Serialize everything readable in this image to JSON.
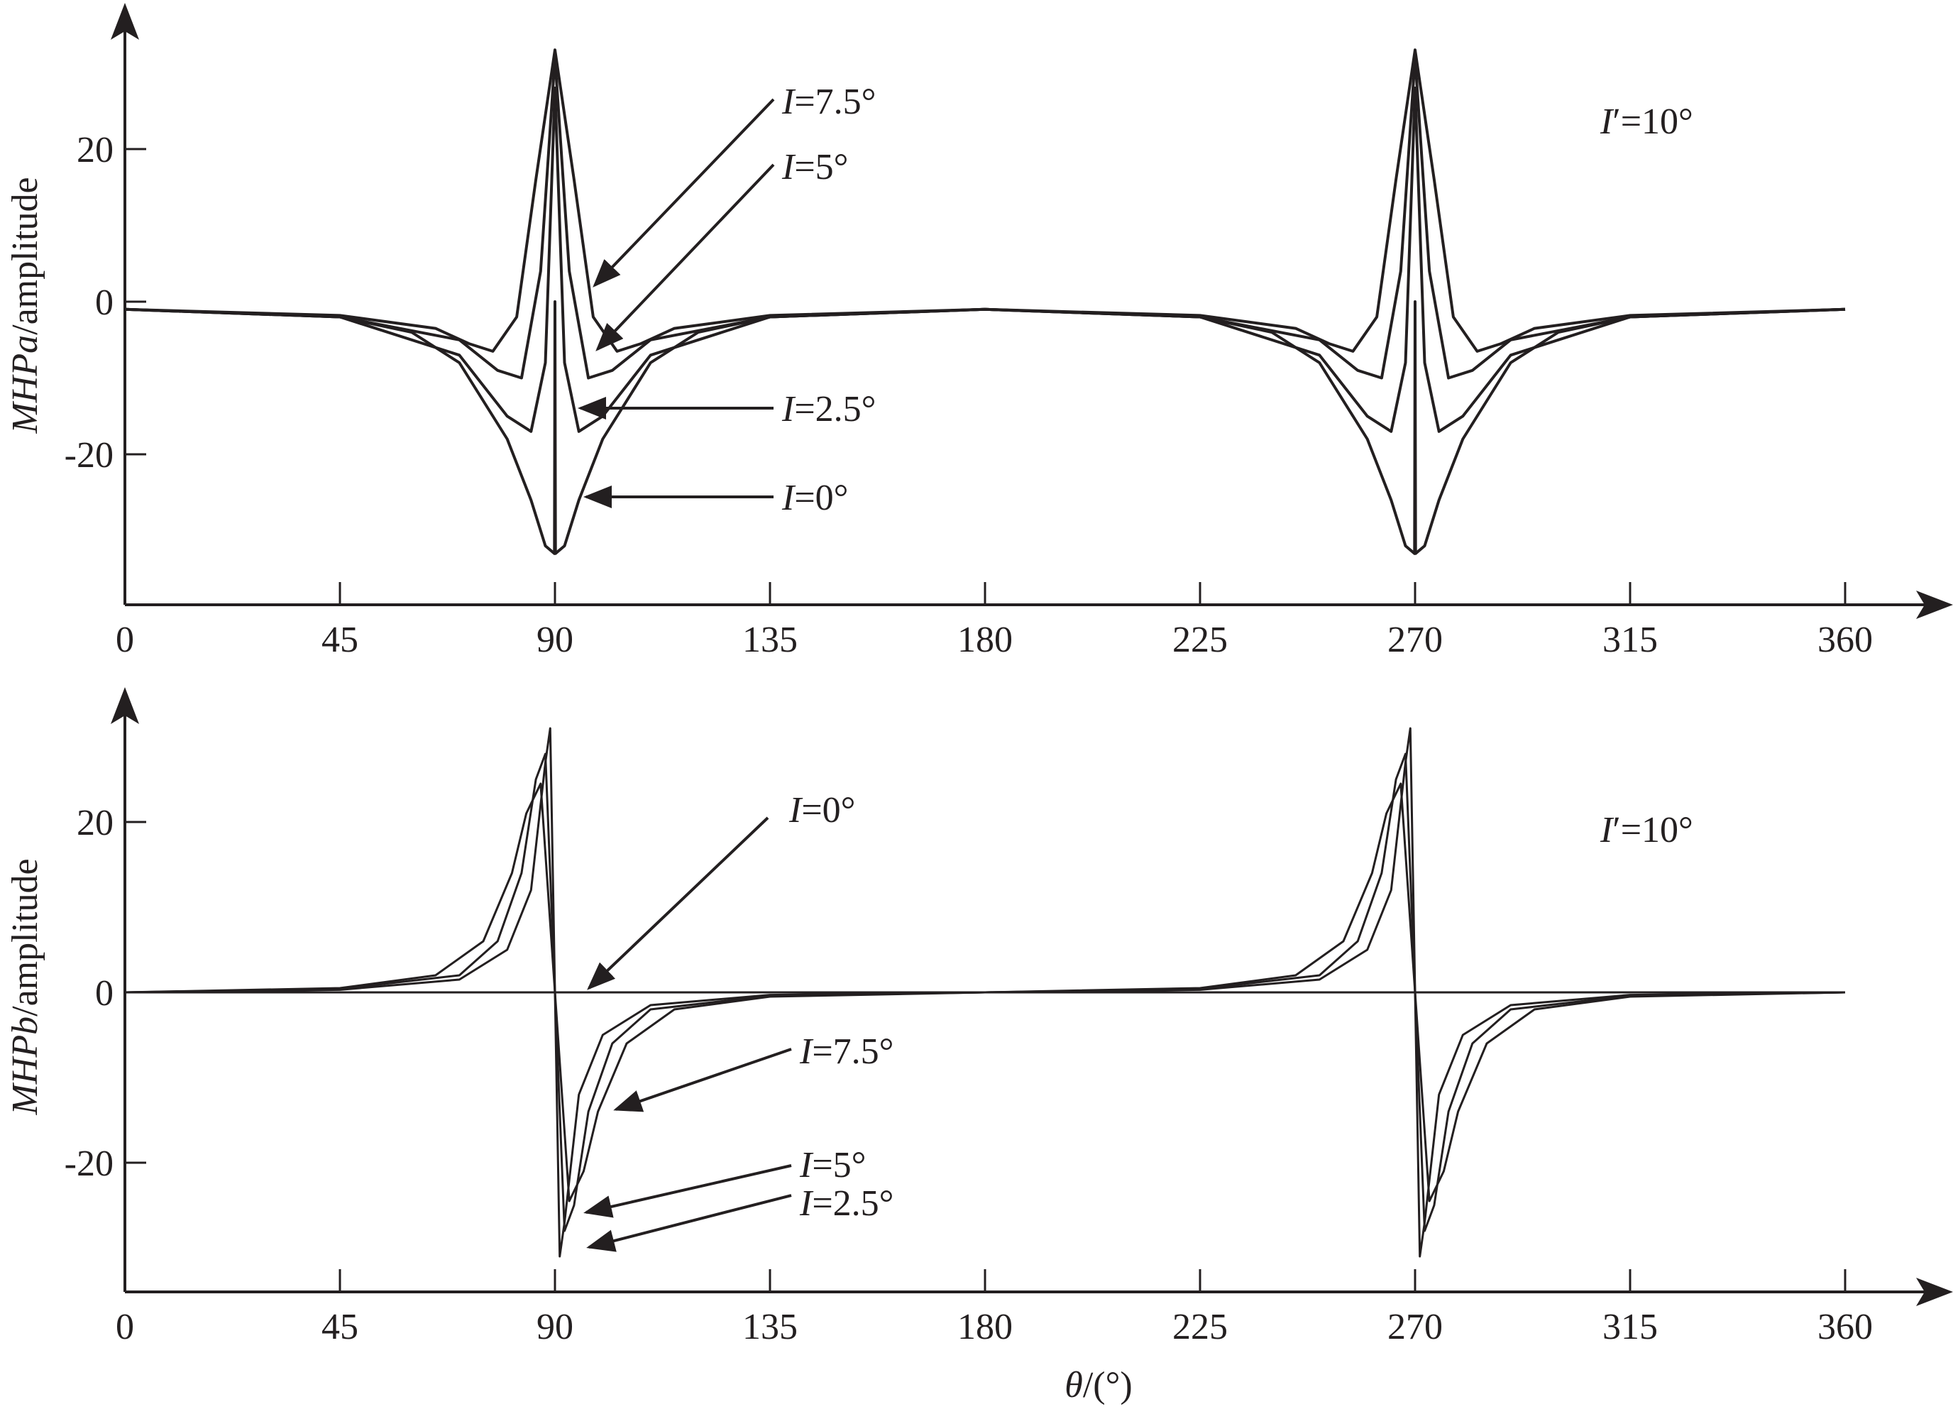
{
  "colors": {
    "ink": "#231f20",
    "background": "#ffffff"
  },
  "chart_data": [
    {
      "type": "line",
      "id": "top",
      "ylabel_italic": "MHPa",
      "ylabel_rest": "/amplitude",
      "xlabel": "",
      "x_ticks": [
        "0",
        "45",
        "90",
        "135",
        "180",
        "225",
        "270",
        "315",
        "360"
      ],
      "y_ticks": [
        "20",
        "0",
        "-20"
      ],
      "xlim": [
        0,
        360
      ],
      "ylim": [
        -38,
        38
      ],
      "grid": false,
      "legend": "none",
      "series": [
        {
          "label_name": "I",
          "label_value": "=0°",
          "x": [
            0,
            45,
            60,
            70,
            80,
            85,
            88,
            89.9,
            90,
            90.1,
            92,
            95,
            100,
            110,
            120,
            135,
            180,
            225,
            240,
            250,
            260,
            265,
            268,
            269.9,
            270,
            270.1,
            272,
            275,
            280,
            290,
            300,
            315,
            360
          ],
          "y": [
            -1,
            -2,
            -4,
            -8,
            -18,
            -26,
            -32,
            -33,
            0,
            -33,
            -32,
            -26,
            -18,
            -8,
            -4,
            -2,
            -1,
            -2,
            -4,
            -8,
            -18,
            -26,
            -32,
            -33,
            0,
            -33,
            -32,
            -26,
            -18,
            -8,
            -4,
            -2,
            -1
          ]
        },
        {
          "label_name": "I",
          "label_value": "=2.5°",
          "x": [
            0,
            45,
            70,
            80,
            85,
            88,
            90,
            92,
            95,
            100,
            110,
            135,
            180,
            225,
            250,
            260,
            265,
            268,
            270,
            272,
            275,
            280,
            290,
            315,
            360
          ],
          "y": [
            -1,
            -2,
            -7,
            -15,
            -17,
            -8,
            28,
            -8,
            -17,
            -15,
            -7,
            -2,
            -1,
            -2,
            -7,
            -15,
            -17,
            -8,
            28,
            -8,
            -17,
            -15,
            -7,
            -2,
            -1
          ]
        },
        {
          "label_name": "I",
          "label_value": "=5°",
          "x": [
            0,
            45,
            70,
            78,
            83,
            87,
            90,
            93,
            97,
            102,
            110,
            135,
            180,
            225,
            250,
            258,
            263,
            267,
            270,
            273,
            277,
            282,
            290,
            315,
            360
          ],
          "y": [
            -1,
            -2,
            -5,
            -9,
            -10,
            4,
            32,
            4,
            -10,
            -9,
            -5,
            -2,
            -1,
            -2,
            -5,
            -9,
            -10,
            4,
            32,
            4,
            -10,
            -9,
            -5,
            -2,
            -1
          ]
        },
        {
          "label_name": "I",
          "label_value": "=7.5°",
          "x": [
            0,
            45,
            65,
            72,
            77,
            82,
            86,
            90,
            94,
            98,
            103,
            108,
            115,
            135,
            180,
            225,
            245,
            252,
            257,
            262,
            266,
            270,
            274,
            278,
            283,
            288,
            295,
            315,
            360
          ],
          "y": [
            -1,
            -1.8,
            -3.5,
            -5.5,
            -6.5,
            -2,
            16,
            33,
            16,
            -2,
            -6.5,
            -5.5,
            -3.5,
            -1.8,
            -1,
            -1.8,
            -3.5,
            -5.5,
            -6.5,
            -2,
            16,
            33,
            16,
            -2,
            -6.5,
            -5.5,
            -3.5,
            -1.8,
            -1
          ]
        }
      ],
      "parameter_name": "I",
      "parameter_prime": "′",
      "parameter_value": "=10°"
    },
    {
      "type": "line",
      "id": "bottom",
      "ylabel_italic": "MHPb",
      "ylabel_rest": "/amplitude",
      "xlabel_italic": "θ",
      "xlabel_rest": "/(°)",
      "x_ticks": [
        "0",
        "45",
        "90",
        "135",
        "180",
        "225",
        "270",
        "315",
        "360"
      ],
      "y_ticks": [
        "20",
        "0",
        "-20"
      ],
      "xlim": [
        0,
        360
      ],
      "ylim": [
        -35,
        35
      ],
      "grid": false,
      "legend": "none",
      "series": [
        {
          "label_name": "I",
          "label_value": "=0°",
          "x": [
            0,
            360
          ],
          "y": [
            0,
            0
          ]
        },
        {
          "label_name": "I",
          "label_value": "=2.5°",
          "x": [
            0,
            45,
            70,
            80,
            85,
            88,
            89,
            90,
            91,
            92,
            95,
            100,
            110,
            135,
            180,
            225,
            250,
            260,
            265,
            268,
            269,
            270,
            271,
            272,
            275,
            280,
            290,
            315,
            360
          ],
          "y": [
            0,
            0.3,
            1.5,
            5,
            12,
            27,
            31,
            0,
            -31,
            -27,
            -12,
            -5,
            -1.5,
            -0.3,
            0,
            0.3,
            1.5,
            5,
            12,
            27,
            31,
            0,
            -31,
            -27,
            -12,
            -5,
            -1.5,
            -0.3,
            0
          ]
        },
        {
          "label_name": "I",
          "label_value": "=5°",
          "x": [
            0,
            45,
            70,
            78,
            83,
            86,
            88,
            90,
            92,
            94,
            97,
            102,
            110,
            135,
            180,
            225,
            250,
            258,
            263,
            266,
            268,
            270,
            272,
            274,
            277,
            282,
            290,
            315,
            360
          ],
          "y": [
            0,
            0.4,
            2,
            6,
            14,
            25,
            28,
            0,
            -28,
            -25,
            -14,
            -6,
            -2,
            -0.4,
            0,
            0.4,
            2,
            6,
            14,
            25,
            28,
            0,
            -28,
            -25,
            -14,
            -6,
            -2,
            -0.4,
            0
          ]
        },
        {
          "label_name": "I",
          "label_value": "=7.5°",
          "x": [
            0,
            45,
            65,
            75,
            81,
            84,
            87,
            90,
            93,
            96,
            99,
            105,
            115,
            135,
            180,
            225,
            245,
            255,
            261,
            264,
            267,
            270,
            273,
            276,
            279,
            285,
            295,
            315,
            360
          ],
          "y": [
            0,
            0.5,
            2,
            6,
            14,
            21,
            24.5,
            0,
            -24.5,
            -21,
            -14,
            -6,
            -2,
            -0.5,
            0,
            0.5,
            2,
            6,
            14,
            21,
            24.5,
            0,
            -24.5,
            -21,
            -14,
            -6,
            -2,
            -0.5,
            0
          ]
        }
      ],
      "parameter_name": "I",
      "parameter_prime": "′",
      "parameter_value": "=10°"
    }
  ]
}
